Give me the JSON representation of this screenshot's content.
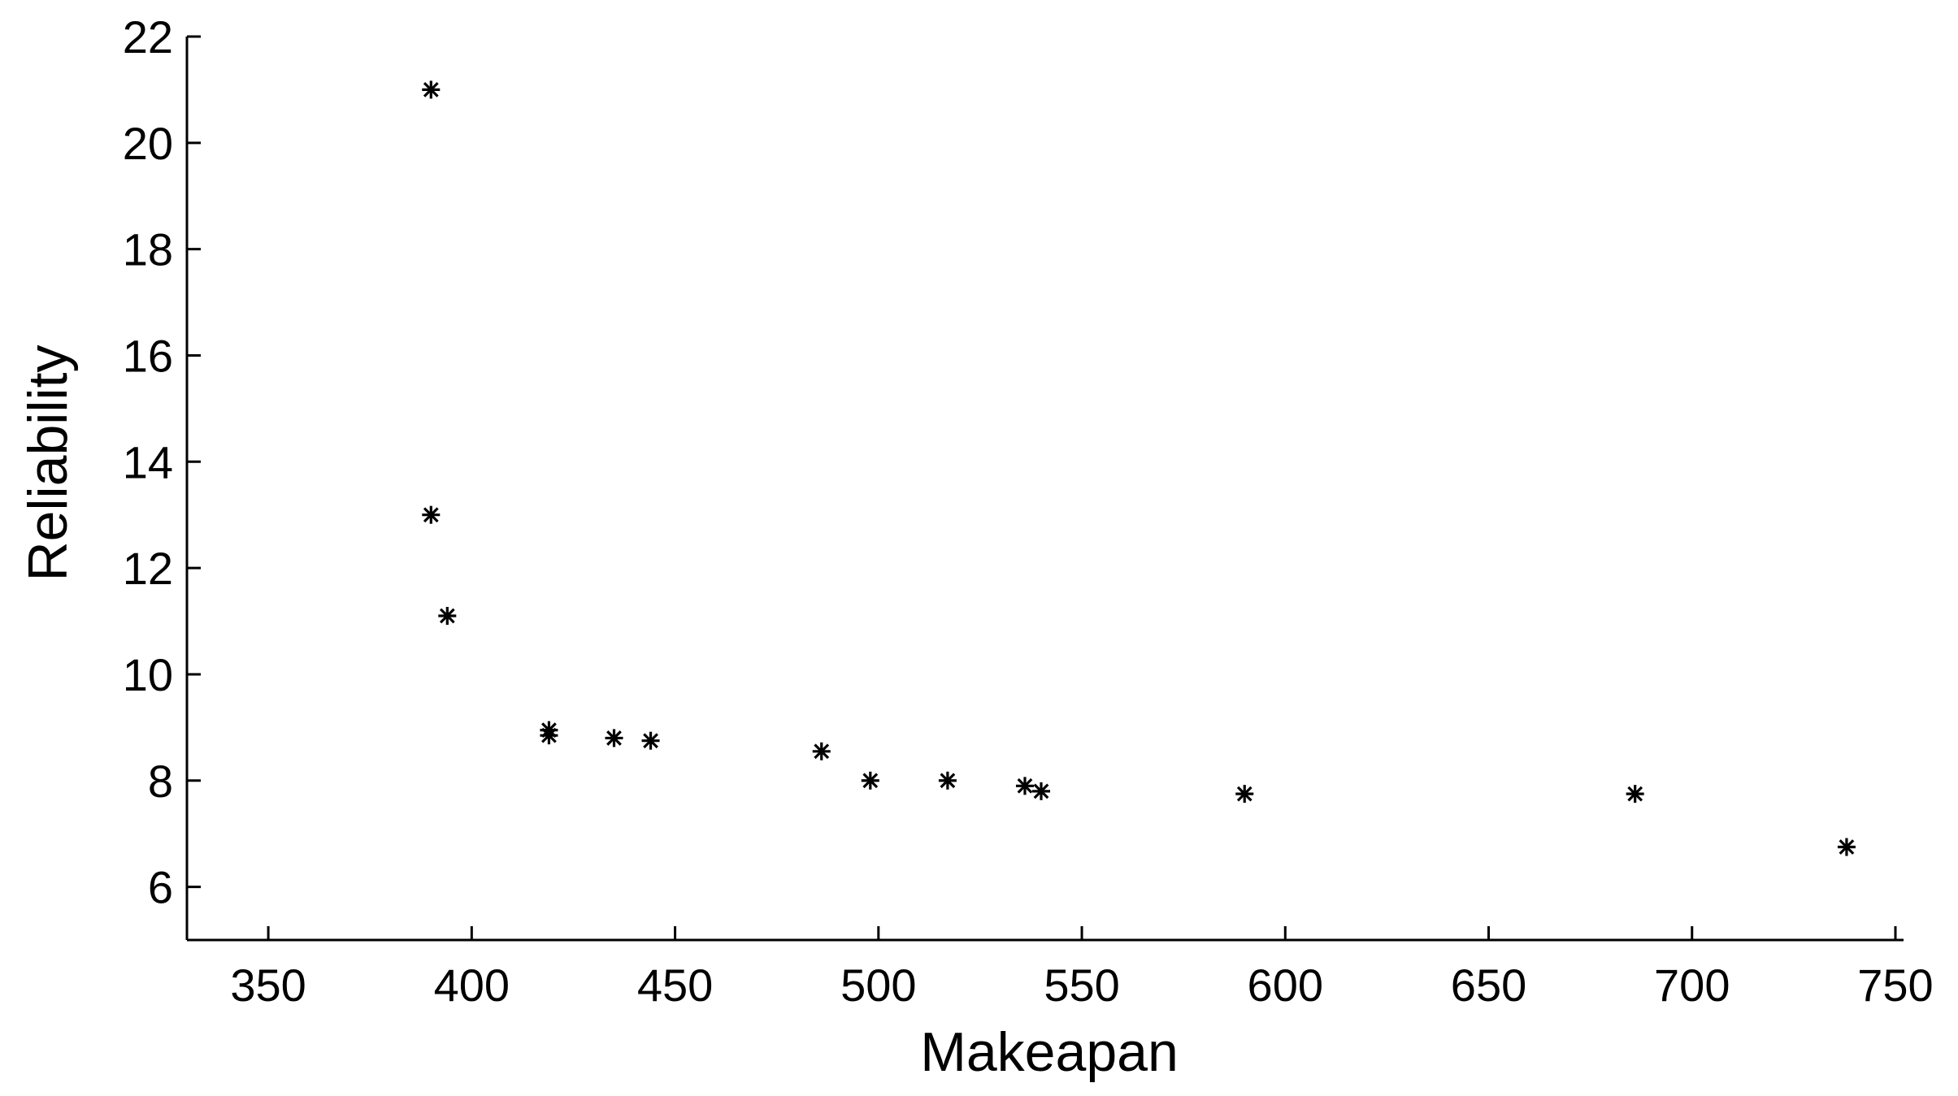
{
  "chart_data": {
    "type": "scatter",
    "title": "",
    "xlabel": "Makeapan",
    "ylabel": "Reliability",
    "xlim": [
      330,
      752
    ],
    "ylim": [
      5,
      22
    ],
    "xticks": [
      350,
      400,
      450,
      500,
      550,
      600,
      650,
      700,
      750
    ],
    "yticks": [
      6,
      8,
      10,
      12,
      14,
      16,
      18,
      20,
      22
    ],
    "grid": false,
    "legend": "none",
    "marker": "asterisk",
    "marker_color": "#000000",
    "points": [
      {
        "x": 390,
        "y": 21.0
      },
      {
        "x": 390,
        "y": 13.0
      },
      {
        "x": 394,
        "y": 11.1
      },
      {
        "x": 419,
        "y": 8.95
      },
      {
        "x": 419,
        "y": 8.85
      },
      {
        "x": 435,
        "y": 8.8
      },
      {
        "x": 444,
        "y": 8.75
      },
      {
        "x": 486,
        "y": 8.55
      },
      {
        "x": 498,
        "y": 8.0
      },
      {
        "x": 517,
        "y": 8.0
      },
      {
        "x": 536,
        "y": 7.9
      },
      {
        "x": 540,
        "y": 7.8
      },
      {
        "x": 590,
        "y": 7.75
      },
      {
        "x": 686,
        "y": 7.75
      },
      {
        "x": 738,
        "y": 6.75
      }
    ]
  }
}
